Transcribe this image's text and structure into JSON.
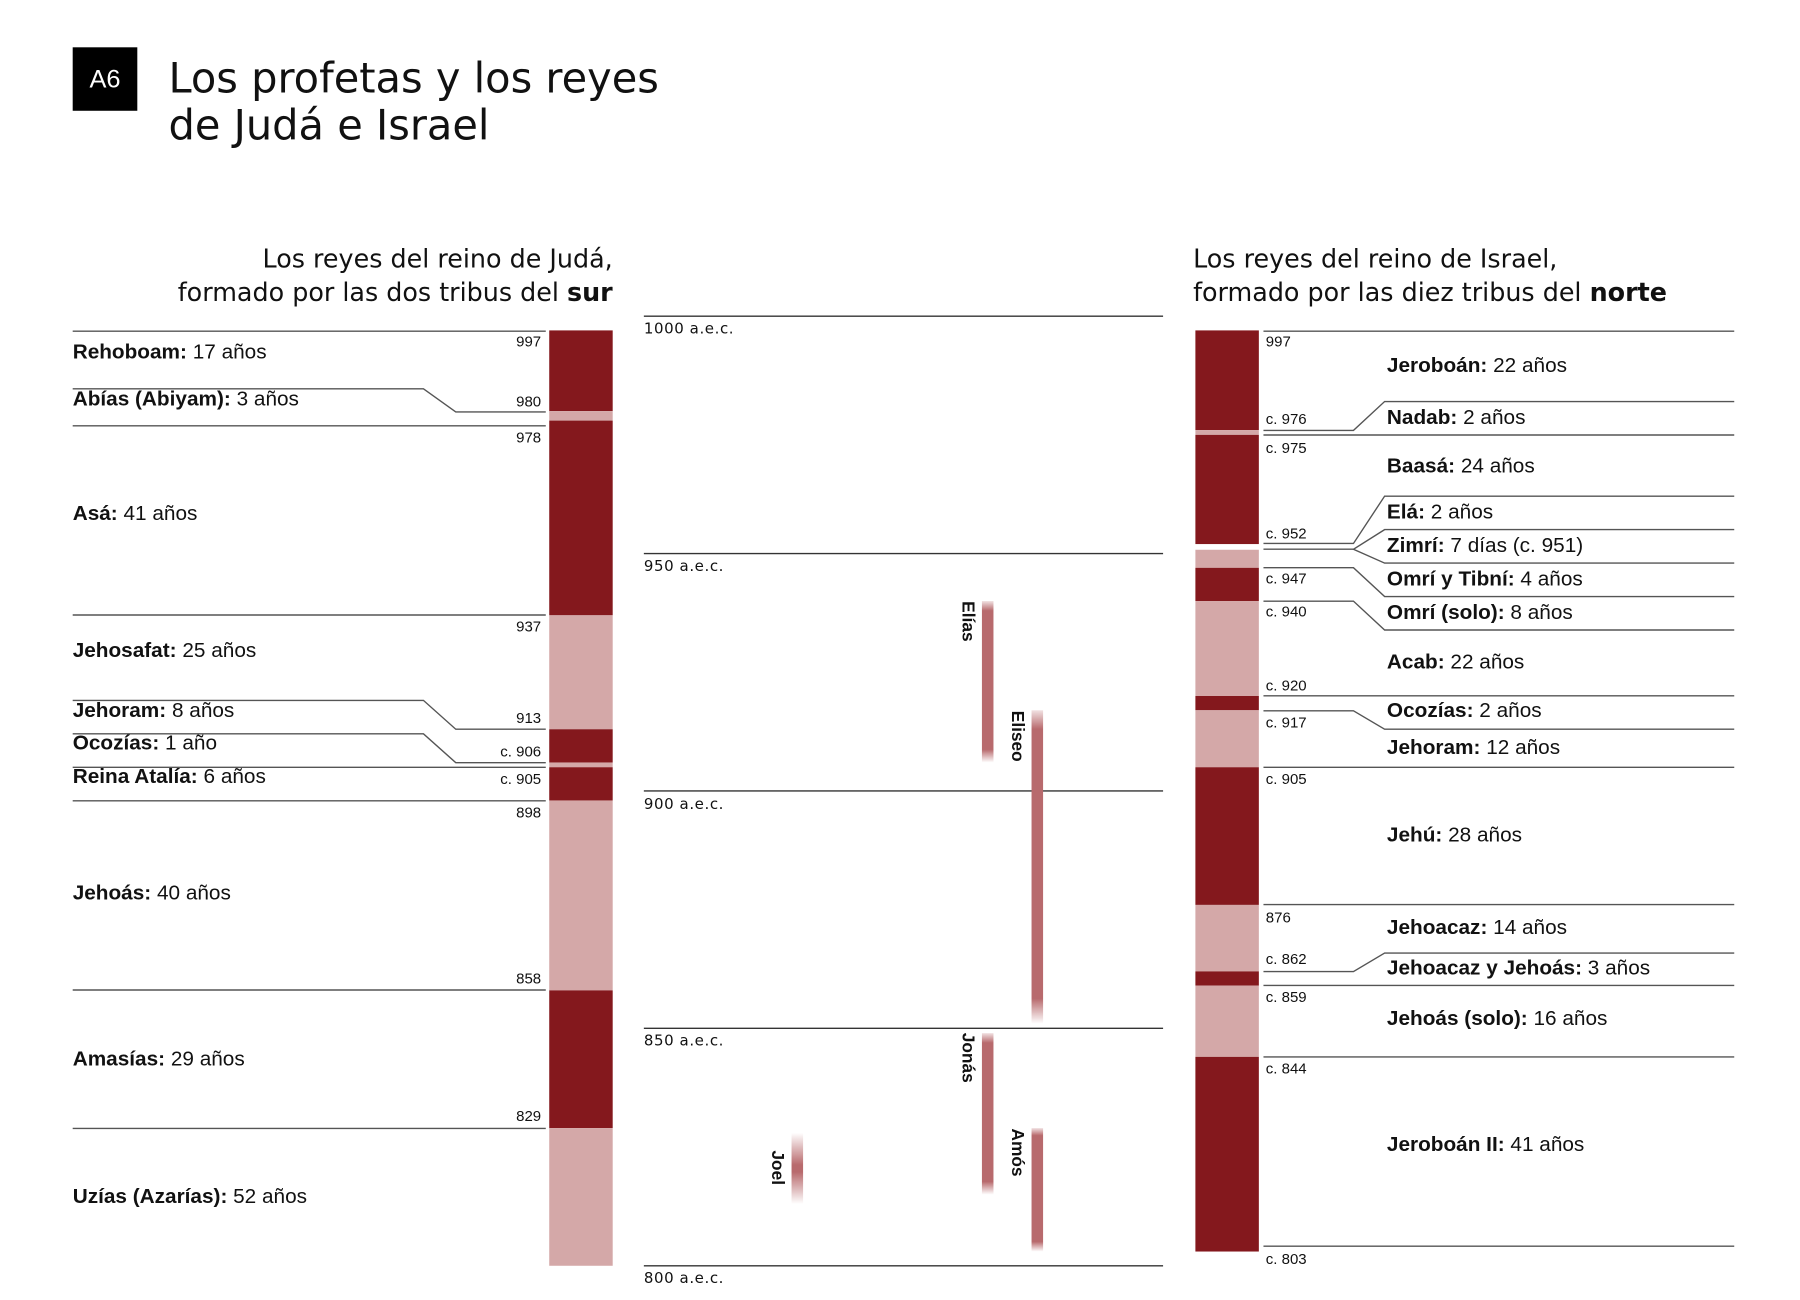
{
  "header": {
    "badge": "A6",
    "title_line1": "Los profetas y los reyes",
    "title_line2": "de Judá e Israel"
  },
  "judah": {
    "subtitle_line1": "Los reyes del reino de Judá,",
    "subtitle_line2_prefix": "formado por las dos tribus del ",
    "subtitle_line2_bold": "sur"
  },
  "israel": {
    "subtitle_line1": "Los reyes del reino de Israel,",
    "subtitle_line2_prefix": "formado por las diez tribus del ",
    "subtitle_line2_bold": "norte"
  },
  "colors": {
    "dark": "#84181d",
    "light": "#d4a8a8",
    "prophet": "#b86a6d",
    "rule": "#555555"
  },
  "chart_data": {
    "type": "timeline",
    "axis": {
      "range_years_bce": [
        1000,
        800
      ],
      "ticks": [
        {
          "year": 1000,
          "label": "1000 a.e.c."
        },
        {
          "year": 950,
          "label": "950 a.e.c."
        },
        {
          "year": 900,
          "label": "900 a.e.c."
        },
        {
          "year": 850,
          "label": "850 a.e.c."
        },
        {
          "year": 800,
          "label": "800 a.e.c."
        }
      ]
    },
    "judah_kings": [
      {
        "name": "Rehoboam:",
        "reign": "17 años",
        "start": 997,
        "end": 980,
        "start_label": "997",
        "shade": "dark",
        "label_year": 992.5
      },
      {
        "name": "Abías (Abiyam):",
        "reign": "3 años",
        "start": 980,
        "end": 978,
        "start_label": "980",
        "shade": "light",
        "label_year": 982.5
      },
      {
        "name": "Asá:",
        "reign": "41 años",
        "start": 978,
        "end": 937,
        "start_label": "978",
        "shade": "dark",
        "label_year": 958.5
      },
      {
        "name": "Jehosafat:",
        "reign": "25 años",
        "start": 937,
        "end": 913,
        "start_label": "937",
        "shade": "light",
        "label_year": 929.5
      },
      {
        "name": "Jehoram:",
        "reign": "8 años",
        "start": 913,
        "end": 906,
        "start_label": "913",
        "shade": "dark",
        "label_year": 917
      },
      {
        "name": "Ocozías:",
        "reign": "1 año",
        "start": 906,
        "end": 905,
        "start_label": "c. 906",
        "shade": "light",
        "label_year": 910
      },
      {
        "name": "Reina Atalía:",
        "reign": "6 años",
        "start": 905,
        "end": 898,
        "start_label": "c. 905",
        "shade": "dark",
        "label_year": 903
      },
      {
        "name": "Jehoás:",
        "reign": "40 años",
        "start": 898,
        "end": 858,
        "start_label": "898",
        "shade": "light",
        "label_year": 878.5
      },
      {
        "name": "Amasías:",
        "reign": "29 años",
        "start": 858,
        "end": 829,
        "start_label": "858",
        "shade": "dark",
        "label_year": 843.5
      },
      {
        "name": "Uzías (Azarías):",
        "reign": "52 años",
        "start": 829,
        "end": 800,
        "start_label": "829",
        "shade": "light",
        "label_year": 814.5
      }
    ],
    "israel_kings": [
      {
        "name": "Jeroboán:",
        "reign": "22 años",
        "start": 997,
        "end": 976,
        "start_label": "997",
        "label_year": 989.5
      },
      {
        "name": "Nadab:",
        "reign": "2 años",
        "start": 976,
        "end": 975,
        "start_label": "c. 976",
        "label_year": 978.5
      },
      {
        "name": "Baasá:",
        "reign": "24 años",
        "start": 975,
        "end": 952,
        "start_label": "c. 975",
        "label_year": 968.5
      },
      {
        "name": "Elá:",
        "reign": "2 años",
        "start": 952,
        "end": 951,
        "start_label": "c. 952",
        "label_year": 958.7
      },
      {
        "name": "Zimrí:",
        "reign": "7 días (c. 951)",
        "start": 951,
        "end": 951,
        "start_label": "",
        "label_year": 951.7
      },
      {
        "name": "Omrí y Tibní:",
        "reign": "4 años",
        "start": 951,
        "end": 947,
        "start_label": "c. 947",
        "label_year": 944.7
      },
      {
        "name": "Omrí (solo):",
        "reign": "8 años",
        "start": 947,
        "end": 940,
        "start_label": "c. 940",
        "label_year": 937.6
      },
      {
        "name": "Acab:",
        "reign": "22 años",
        "start": 940,
        "end": 920,
        "start_label": "c. 920",
        "label_year": 927.2
      },
      {
        "name": "Ocozías:",
        "reign": "2 años",
        "start": 920,
        "end": 917,
        "start_label": "c. 917",
        "label_year": 916.8
      },
      {
        "name": "Jehoram:",
        "reign": "12 años",
        "start": 917,
        "end": 905,
        "start_label": "c. 905",
        "label_year": 909.2
      },
      {
        "name": "Jehú:",
        "reign": "28 años",
        "start": 905,
        "end": 876,
        "start_label": "876",
        "label_year": 890.7
      },
      {
        "name": "Jehoacaz:",
        "reign": "14 años",
        "start": 876,
        "end": 862,
        "start_label": "c. 862",
        "label_year": 871.3
      },
      {
        "name": "Jehoacaz y Jehoás:",
        "reign": "3 años",
        "start": 862,
        "end": 859,
        "start_label": "c. 859",
        "label_year": 862.8
      },
      {
        "name": "Jehoás (solo):",
        "reign": "16 años",
        "start": 859,
        "end": 844,
        "start_label": "c. 844",
        "label_year": 852.1
      },
      {
        "name": "Jeroboán II:",
        "reign": "41 años",
        "start": 844,
        "end": 803,
        "start_label": "c. 803",
        "label_year": 825.4
      }
    ],
    "israel_bar": [
      {
        "start": 997,
        "end": 976,
        "shade": "dark"
      },
      {
        "start": 976,
        "end": 975,
        "shade": "light"
      },
      {
        "start": 975,
        "end": 952,
        "shade": "dark"
      },
      {
        "start": 950.8,
        "end": 947,
        "shade": "light"
      },
      {
        "start": 947,
        "end": 940,
        "shade": "dark"
      },
      {
        "start": 940,
        "end": 920,
        "shade": "light"
      },
      {
        "start": 920,
        "end": 917,
        "shade": "dark"
      },
      {
        "start": 917,
        "end": 905,
        "shade": "light"
      },
      {
        "start": 905,
        "end": 876,
        "shade": "dark"
      },
      {
        "start": 876,
        "end": 862,
        "shade": "light"
      },
      {
        "start": 862,
        "end": 859,
        "shade": "dark"
      },
      {
        "start": 859,
        "end": 844,
        "shade": "light"
      },
      {
        "start": 844,
        "end": 803,
        "shade": "dark"
      }
    ],
    "prophets": [
      {
        "name": "Elías",
        "start": 940,
        "end": 906,
        "column": 1
      },
      {
        "name": "Eliseo",
        "start": 917,
        "end": 851,
        "column": 2
      },
      {
        "name": "Jonás",
        "start": 849,
        "end": 815,
        "column": 1
      },
      {
        "name": "Amós",
        "start": 829,
        "end": 803,
        "column": 2
      },
      {
        "name": "Joel",
        "start": 828,
        "end": 813,
        "column": 0
      }
    ]
  }
}
